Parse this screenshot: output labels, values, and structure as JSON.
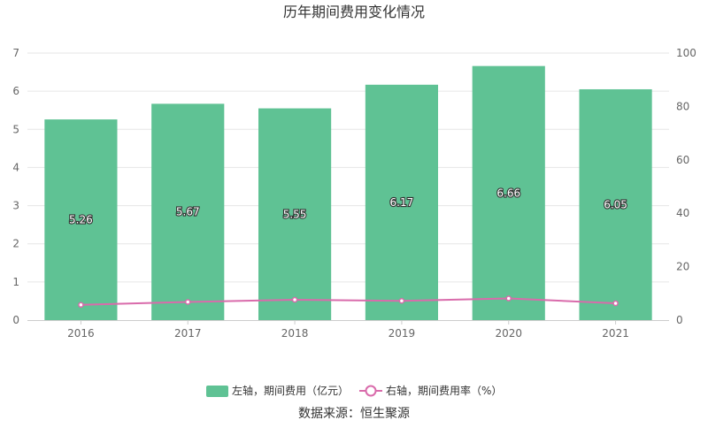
{
  "chart_data": {
    "type": "bar",
    "title": "历年期间费用变化情况",
    "categories": [
      "2016",
      "2017",
      "2018",
      "2019",
      "2020",
      "2021"
    ],
    "series": [
      {
        "name": "左轴，期间费用（亿元）",
        "type": "bar",
        "axis": "left",
        "color": "#5fc294",
        "values": [
          5.26,
          5.67,
          5.55,
          6.17,
          6.66,
          6.05
        ],
        "labels": [
          "5.26",
          "5.67",
          "5.55",
          "6.17",
          "6.66",
          "6.05"
        ]
      },
      {
        "name": "右轴，期间费用率（%）",
        "type": "line",
        "axis": "right",
        "color": "#d96bab",
        "values": [
          5.7,
          6.8,
          7.6,
          7.2,
          8.1,
          6.3
        ]
      }
    ],
    "y_left": {
      "min": 0,
      "max": 7,
      "ticks": [
        "0",
        "1",
        "2",
        "3",
        "4",
        "5",
        "6",
        "7"
      ]
    },
    "y_right": {
      "min": 0,
      "max": 100,
      "ticks": [
        "0",
        "20",
        "40",
        "60",
        "80",
        "100"
      ]
    },
    "grid": true,
    "legend_position": "bottom"
  },
  "source_text": "数据来源：恒生聚源"
}
